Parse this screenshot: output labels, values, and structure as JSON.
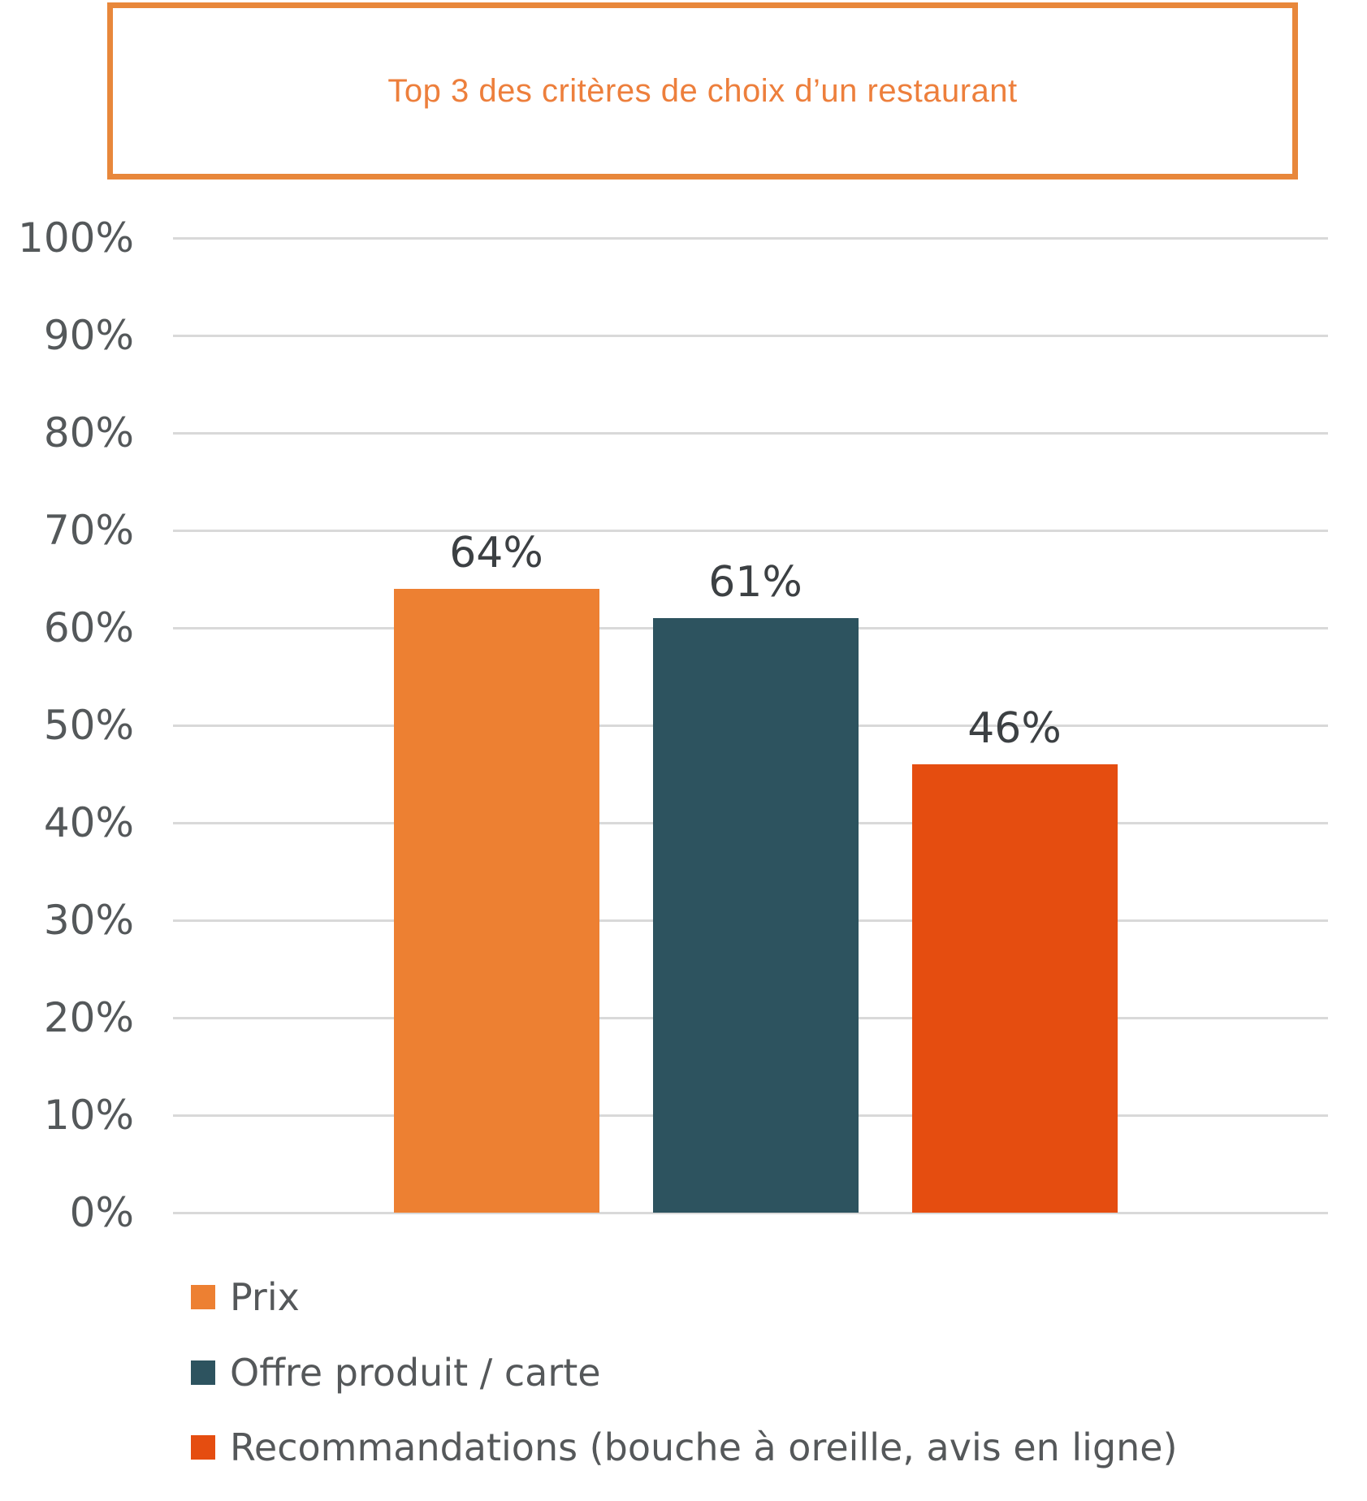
{
  "title": "Top 3 des critères de choix d’un restaurant",
  "colors": {
    "title_text": "#ED7F3C",
    "title_border": "#E8873B",
    "grid": "#D9D9D9",
    "tick_text": "#54585A",
    "value_text": "#3C4043",
    "legend_text": "#55585A",
    "background": "#FFFFFF"
  },
  "chart_data": {
    "type": "bar",
    "title": "Top 3 des critères de choix d’un restaurant",
    "categories": [
      "Prix",
      "Offre produit / carte",
      "Recommandations (bouche à oreille, avis en ligne)"
    ],
    "values": [
      64,
      61,
      46
    ],
    "data_labels": [
      "64%",
      "61%",
      "46%"
    ],
    "series_colors": [
      "#ED8032",
      "#2D535F",
      "#E54D10"
    ],
    "xlabel": "",
    "ylabel": "",
    "ylim": [
      0,
      100
    ],
    "ytick_step": 10,
    "yticks": [
      "0%",
      "10%",
      "20%",
      "30%",
      "40%",
      "50%",
      "60%",
      "70%",
      "80%",
      "90%",
      "100%"
    ],
    "grid": true,
    "legend_position": "bottom-left"
  },
  "legend": {
    "items": [
      {
        "label": "Prix",
        "color": "#ED8032"
      },
      {
        "label": "Offre produit / carte",
        "color": "#2D535F"
      },
      {
        "label": "Recommandations (bouche à oreille, avis en ligne)",
        "color": "#E54D10"
      }
    ]
  }
}
